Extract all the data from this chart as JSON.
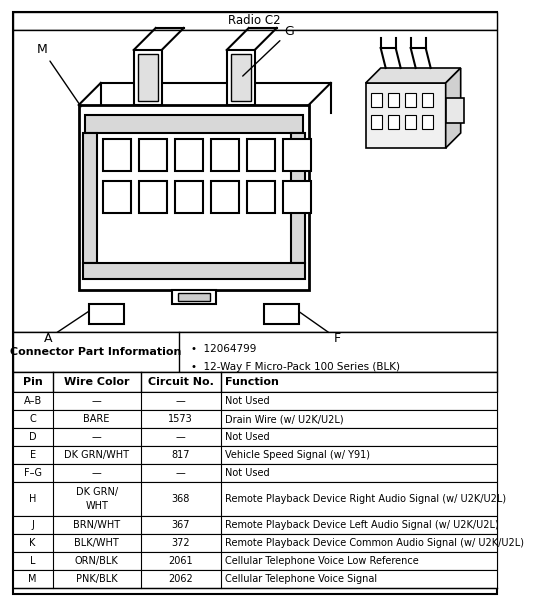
{
  "title": "Radio C2",
  "connector_part_info_label": "Connector Part Information",
  "connector_part_bullets": [
    "12064799",
    "12-Way F Micro-Pack 100 Series (BLK)"
  ],
  "table_headers": [
    "Pin",
    "Wire Color",
    "Circuit No.",
    "Function"
  ],
  "table_rows": [
    [
      "A–B",
      "—",
      "—",
      "Not Used"
    ],
    [
      "C",
      "BARE",
      "1573",
      "Drain Wire (w/ U2K/U2L)"
    ],
    [
      "D",
      "—",
      "—",
      "Not Used"
    ],
    [
      "E",
      "DK GRN/WHT",
      "817",
      "Vehicle Speed Signal (w/ Y91)"
    ],
    [
      "F–G",
      "—",
      "—",
      "Not Used"
    ],
    [
      "H",
      "DK GRN/\nWHT",
      "368",
      "Remote Playback Device Right Audio Signal (w/ U2K/U2L)"
    ],
    [
      "J",
      "BRN/WHT",
      "367",
      "Remote Playback Device Left Audio Signal (w/ U2K/U2L)"
    ],
    [
      "K",
      "BLK/WHT",
      "372",
      "Remote Playback Device Common Audio Signal (w/ U2K/U2L)"
    ],
    [
      "L",
      "ORN/BLK",
      "2061",
      "Cellular Telephone Voice Low Reference"
    ],
    [
      "M",
      "PNK/BLK",
      "2062",
      "Cellular Telephone Voice Signal"
    ]
  ],
  "bg_color": "#ffffff"
}
